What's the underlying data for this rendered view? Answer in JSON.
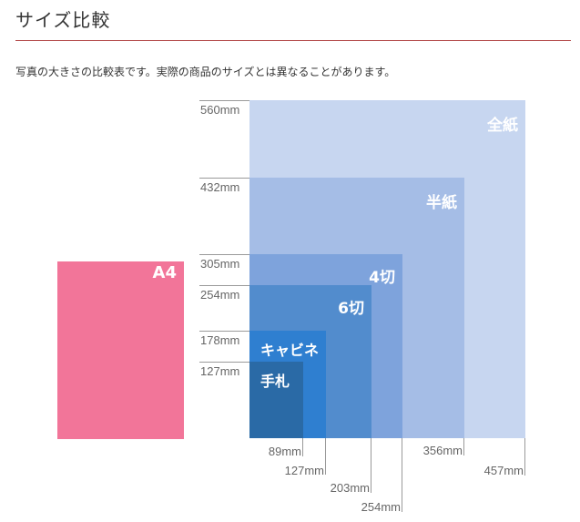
{
  "page": {
    "title": "サイズ比較",
    "description": "写真の大きさの比較表です。実際の商品のサイズとは異なることがあります。"
  },
  "sizes": [
    {
      "key": "zenshi",
      "name": "全紙",
      "width_mm": 457,
      "height_mm": 560,
      "height_label": "560mm",
      "width_label": "457mm",
      "color": "#c7d6f0"
    },
    {
      "key": "hanshi",
      "name": "半紙",
      "width_mm": 356,
      "height_mm": 432,
      "height_label": "432mm",
      "width_label": "356mm",
      "color": "#a5bde6"
    },
    {
      "key": "yotsugiri",
      "name": "4切",
      "width_mm": 254,
      "height_mm": 305,
      "height_label": "305mm",
      "width_label": "254mm",
      "color": "#7ea3dc"
    },
    {
      "key": "mutsugiri",
      "name": "6切",
      "width_mm": 203,
      "height_mm": 254,
      "height_label": "254mm",
      "width_label": "203mm",
      "color": "#528ccd"
    },
    {
      "key": "cabinet",
      "name": "キャビネ",
      "width_mm": 127,
      "height_mm": 178,
      "height_label": "178mm",
      "width_label": "127mm",
      "color": "#2f7fd0"
    },
    {
      "key": "tefuda",
      "name": "手札",
      "width_mm": 89,
      "height_mm": 127,
      "height_label": "127mm",
      "width_label": "89mm",
      "color": "#2a6aa6"
    }
  ],
  "reference": {
    "name": "A4",
    "color": "#f27599"
  }
}
